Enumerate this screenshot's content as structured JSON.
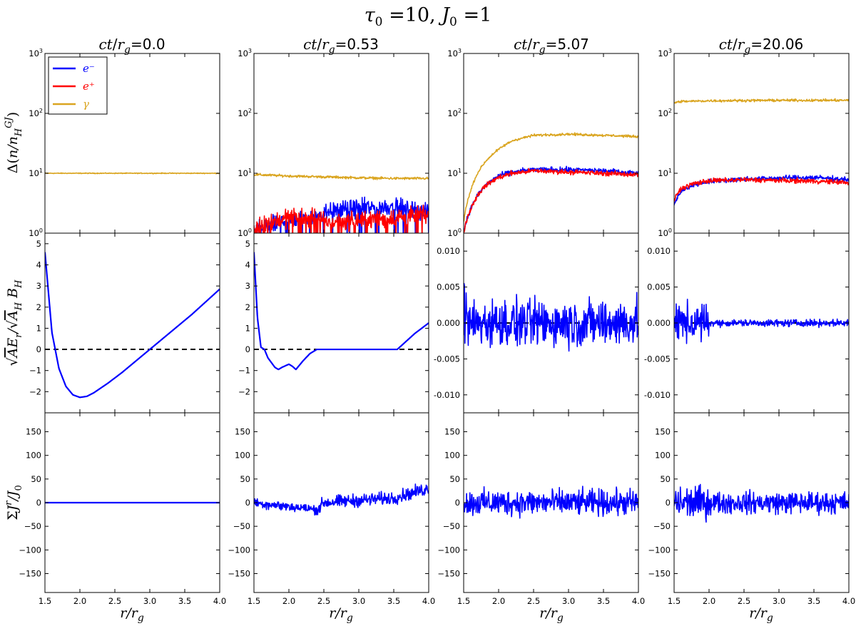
{
  "figure": {
    "title": "τ₀ =10, J₀ =1",
    "title_parts": {
      "tau": "τ",
      "tau_sub": "0",
      "tau_val": " =10, ",
      "j": "J",
      "j_sub": "0",
      "j_val": " =1"
    },
    "xlabel": {
      "r": "r",
      "sep": "/",
      "rg": "r",
      "g": "g"
    },
    "row_ylabels": [
      "Δ(n/n_H^GJ)",
      "√A E_r/√A_H B_H",
      "ΣJ^r/J_0"
    ],
    "legend": [
      {
        "label": "e⁻",
        "color": "#0000ff"
      },
      {
        "label": "e⁺",
        "color": "#ff0000"
      },
      {
        "label": "γ",
        "color": "#daa520"
      }
    ],
    "colors": {
      "electron": "#0000ff",
      "positron": "#ff0000",
      "photon": "#daa520",
      "zero_line": "#000000"
    }
  },
  "chart_data": [
    {
      "type": "line",
      "panel": "density-t0",
      "title": "ct/r_g=0.0",
      "time_label": "0.0",
      "yscale": "log",
      "xlim": [
        1.5,
        4.0
      ],
      "ylim": [
        1,
        1000
      ],
      "x_ticks": [
        "1.5",
        "2.0",
        "2.5",
        "3.0",
        "3.5",
        "4.0"
      ],
      "y_ticks": [
        "10⁰",
        "10¹",
        "10²",
        "10³"
      ],
      "series": [
        {
          "name": "γ",
          "color": "#daa520",
          "x": [
            1.5,
            4.0
          ],
          "values": [
            10,
            10
          ]
        }
      ]
    },
    {
      "type": "line",
      "panel": "density-t1",
      "title": "ct/r_g=0.53",
      "time_label": "0.53",
      "yscale": "log",
      "xlim": [
        1.5,
        4.0
      ],
      "ylim": [
        1,
        1000
      ],
      "y_ticks": [
        "10⁰",
        "10¹",
        "10²",
        "10³"
      ],
      "series": [
        {
          "name": "γ",
          "color": "#daa520",
          "x": [
            1.5,
            2.0,
            2.5,
            3.0,
            3.5,
            4.0
          ],
          "values": [
            9.5,
            9.0,
            8.7,
            8.4,
            8.2,
            8.2
          ]
        },
        {
          "name": "e⁻",
          "color": "#0000ff",
          "x": [
            1.5,
            1.8,
            2.1,
            2.4,
            2.6,
            3.0,
            3.5,
            4.0
          ],
          "values": [
            1.0,
            1.4,
            1.7,
            2.0,
            2.4,
            2.6,
            2.8,
            2.2
          ]
        },
        {
          "name": "e⁺",
          "color": "#ff0000",
          "x": [
            1.5,
            1.8,
            2.1,
            2.4,
            2.6,
            3.0,
            3.5,
            4.0
          ],
          "values": [
            1.2,
            1.6,
            1.9,
            1.7,
            1.5,
            1.6,
            1.8,
            2.0
          ]
        }
      ]
    },
    {
      "type": "line",
      "panel": "density-t2",
      "title": "ct/r_g=5.07",
      "time_label": "5.07",
      "yscale": "log",
      "xlim": [
        1.5,
        4.0
      ],
      "ylim": [
        1,
        1000
      ],
      "y_ticks": [
        "10⁰",
        "10¹",
        "10²",
        "10³"
      ],
      "series": [
        {
          "name": "γ",
          "color": "#daa520",
          "x": [
            1.5,
            1.6,
            1.8,
            2.0,
            2.2,
            2.5,
            3.0,
            3.5,
            4.0
          ],
          "values": [
            1.5,
            5,
            15,
            25,
            35,
            43,
            45,
            43,
            41
          ]
        },
        {
          "name": "e⁻",
          "color": "#0000ff",
          "x": [
            1.5,
            1.6,
            1.8,
            2.0,
            2.2,
            2.5,
            3.0,
            3.5,
            4.0
          ],
          "values": [
            1.0,
            2.5,
            6,
            9,
            10.5,
            11.5,
            11.5,
            11,
            10
          ]
        },
        {
          "name": "e⁺",
          "color": "#ff0000",
          "x": [
            1.5,
            1.6,
            1.8,
            2.0,
            2.2,
            2.5,
            3.0,
            3.5,
            4.0
          ],
          "values": [
            1.0,
            2.5,
            6,
            8.5,
            10,
            11,
            10.5,
            10,
            9.5
          ]
        }
      ]
    },
    {
      "type": "line",
      "panel": "density-t3",
      "title": "ct/r_g=20.06",
      "time_label": "20.06",
      "yscale": "log",
      "xlim": [
        1.5,
        4.0
      ],
      "ylim": [
        1,
        1000
      ],
      "y_ticks": [
        "10⁰",
        "10¹",
        "10²",
        "10³"
      ],
      "series": [
        {
          "name": "γ",
          "color": "#daa520",
          "x": [
            1.5,
            1.6,
            2.0,
            2.5,
            3.0,
            3.5,
            4.0
          ],
          "values": [
            150,
            158,
            162,
            164,
            165,
            165,
            165
          ]
        },
        {
          "name": "e⁻",
          "color": "#0000ff",
          "x": [
            1.5,
            1.6,
            1.8,
            2.0,
            2.5,
            3.0,
            3.5,
            4.0
          ],
          "values": [
            3,
            5,
            6.5,
            7.3,
            8,
            8.3,
            8.5,
            7.8
          ]
        },
        {
          "name": "e⁺",
          "color": "#ff0000",
          "x": [
            1.5,
            1.6,
            1.8,
            2.0,
            2.5,
            3.0,
            3.5,
            4.0
          ],
          "values": [
            3.5,
            5.5,
            6.8,
            7.5,
            7.8,
            7.6,
            7.4,
            7.0
          ]
        }
      ]
    },
    {
      "type": "line",
      "panel": "efield-t0",
      "xlim": [
        1.5,
        4.0
      ],
      "ylim": [
        -3,
        5.5
      ],
      "y_ticks": [
        "−2",
        "−1",
        "0",
        "1",
        "2",
        "3",
        "4",
        "5"
      ],
      "series": [
        {
          "name": "E_r",
          "color": "#0000ff",
          "x": [
            1.5,
            1.6,
            1.7,
            1.8,
            1.9,
            2.0,
            2.1,
            2.2,
            2.4,
            2.6,
            2.8,
            3.0,
            3.2,
            3.4,
            3.6,
            3.8,
            4.0
          ],
          "values": [
            4.6,
            0.8,
            -0.9,
            -1.75,
            -2.15,
            -2.27,
            -2.22,
            -2.05,
            -1.6,
            -1.1,
            -0.55,
            0.0,
            0.55,
            1.1,
            1.65,
            2.25,
            2.85
          ]
        }
      ]
    },
    {
      "type": "line",
      "panel": "efield-t1",
      "xlim": [
        1.5,
        4.0
      ],
      "ylim": [
        -3,
        5.5
      ],
      "y_ticks": [
        "−2",
        "−1",
        "0",
        "1",
        "2",
        "3",
        "4",
        "5"
      ],
      "series": [
        {
          "name": "E_r",
          "color": "#0000ff",
          "x": [
            1.5,
            1.55,
            1.6,
            1.65,
            1.7,
            1.8,
            1.85,
            1.9,
            2.0,
            2.05,
            2.1,
            2.2,
            2.3,
            2.4,
            2.5,
            3.0,
            3.55,
            3.6,
            3.7,
            3.8,
            4.0
          ],
          "values": [
            4.6,
            1.5,
            0.1,
            0.0,
            -0.4,
            -0.85,
            -0.95,
            -0.85,
            -0.7,
            -0.8,
            -0.95,
            -0.55,
            -0.2,
            0.0,
            0.0,
            0.0,
            0.0,
            0.15,
            0.45,
            0.75,
            1.25
          ]
        }
      ]
    },
    {
      "type": "line",
      "panel": "efield-t2",
      "xlim": [
        1.5,
        4.0
      ],
      "ylim": [
        -0.0125,
        0.0125
      ],
      "y_ticks": [
        "-0.010",
        "-0.005",
        "0.000",
        "0.005",
        "0.010"
      ],
      "series": [
        {
          "name": "E_r",
          "color": "#0000ff",
          "x": [
            1.5,
            4.0
          ],
          "values": [
            0.0,
            0.0
          ],
          "noise_amplitude": 0.006
        }
      ]
    },
    {
      "type": "line",
      "panel": "efield-t3",
      "xlim": [
        1.5,
        4.0
      ],
      "ylim": [
        -0.0125,
        0.0125
      ],
      "y_ticks": [
        "-0.010",
        "-0.005",
        "0.000",
        "0.005",
        "0.010"
      ],
      "series": [
        {
          "name": "E_r",
          "color": "#0000ff",
          "x": [
            1.5,
            4.0
          ],
          "values": [
            0.0,
            0.0
          ],
          "noise_amplitude": 0.004
        }
      ]
    },
    {
      "type": "line",
      "panel": "current-t0",
      "xlim": [
        1.5,
        4.0
      ],
      "ylim": [
        -190,
        190
      ],
      "x_ticks": [
        "1.5",
        "2.0",
        "2.5",
        "3.0",
        "3.5",
        "4.0"
      ],
      "y_ticks": [
        "−150",
        "−100",
        "−50",
        "0",
        "50",
        "100",
        "150"
      ],
      "series": [
        {
          "name": "J^r",
          "color": "#0000ff",
          "x": [
            1.5,
            4.0
          ],
          "values": [
            0,
            0
          ]
        }
      ]
    },
    {
      "type": "line",
      "panel": "current-t1",
      "xlim": [
        1.5,
        4.0
      ],
      "ylim": [
        -190,
        190
      ],
      "x_ticks": [
        "1.5",
        "2.0",
        "2.5",
        "3.0",
        "3.5",
        "4.0"
      ],
      "y_ticks": [
        "−150",
        "−100",
        "−50",
        "0",
        "50",
        "100",
        "150"
      ],
      "series": [
        {
          "name": "J^r",
          "color": "#0000ff",
          "x": [
            1.5,
            2.4,
            2.5,
            3.0,
            3.5,
            4.0
          ],
          "values": [
            0,
            -15,
            0,
            5,
            10,
            30
          ],
          "noise_amplitude": 25
        }
      ]
    },
    {
      "type": "line",
      "panel": "current-t2",
      "xlim": [
        1.5,
        4.0
      ],
      "ylim": [
        -190,
        190
      ],
      "x_ticks": [
        "1.5",
        "2.0",
        "2.5",
        "3.0",
        "3.5",
        "4.0"
      ],
      "y_ticks": [
        "−150",
        "−100",
        "−50",
        "0",
        "50",
        "100",
        "150"
      ],
      "series": [
        {
          "name": "J^r",
          "color": "#0000ff",
          "x": [
            1.5,
            4.0
          ],
          "values": [
            0,
            0
          ],
          "noise_amplitude": 40
        }
      ]
    },
    {
      "type": "line",
      "panel": "current-t3",
      "xlim": [
        1.5,
        4.0
      ],
      "ylim": [
        -190,
        190
      ],
      "x_ticks": [
        "1.5",
        "2.0",
        "2.5",
        "3.0",
        "3.5",
        "4.0"
      ],
      "y_ticks": [
        "−150",
        "−100",
        "−50",
        "0",
        "50",
        "100",
        "150"
      ],
      "series": [
        {
          "name": "J^r",
          "color": "#0000ff",
          "x": [
            1.5,
            4.0
          ],
          "values": [
            0,
            0
          ],
          "noise_amplitude": 45
        }
      ]
    }
  ]
}
